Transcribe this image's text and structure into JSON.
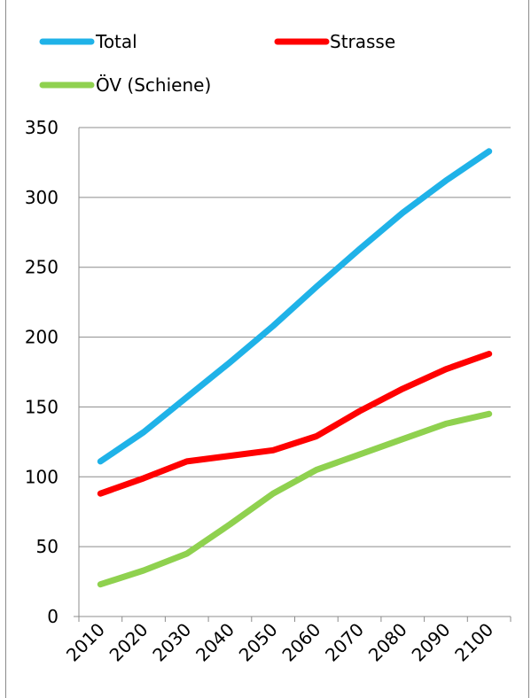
{
  "chart_data": {
    "type": "line",
    "title": "",
    "xlabel": "",
    "ylabel": "",
    "categories": [
      "2010",
      "2020",
      "2030",
      "2040",
      "2050",
      "2060",
      "2070",
      "2080",
      "2090",
      "2100"
    ],
    "ylim": [
      0,
      350
    ],
    "yticks": [
      "0",
      "50",
      "100",
      "150",
      "200",
      "250",
      "300",
      "350"
    ],
    "grid": true,
    "legend_position": "top",
    "series": [
      {
        "name": "Total",
        "color": "#1fb2e8",
        "values": [
          111,
          132,
          157,
          182,
          208,
          236,
          263,
          289,
          312,
          333
        ]
      },
      {
        "name": "Strasse",
        "color": "#ff0000",
        "values": [
          88,
          99,
          111,
          115,
          119,
          129,
          147,
          163,
          177,
          188
        ]
      },
      {
        "name": "ÖV (Schiene)",
        "color": "#8fd14f",
        "values": [
          23,
          33,
          45,
          66,
          88,
          105,
          116,
          127,
          138,
          145
        ]
      }
    ]
  }
}
